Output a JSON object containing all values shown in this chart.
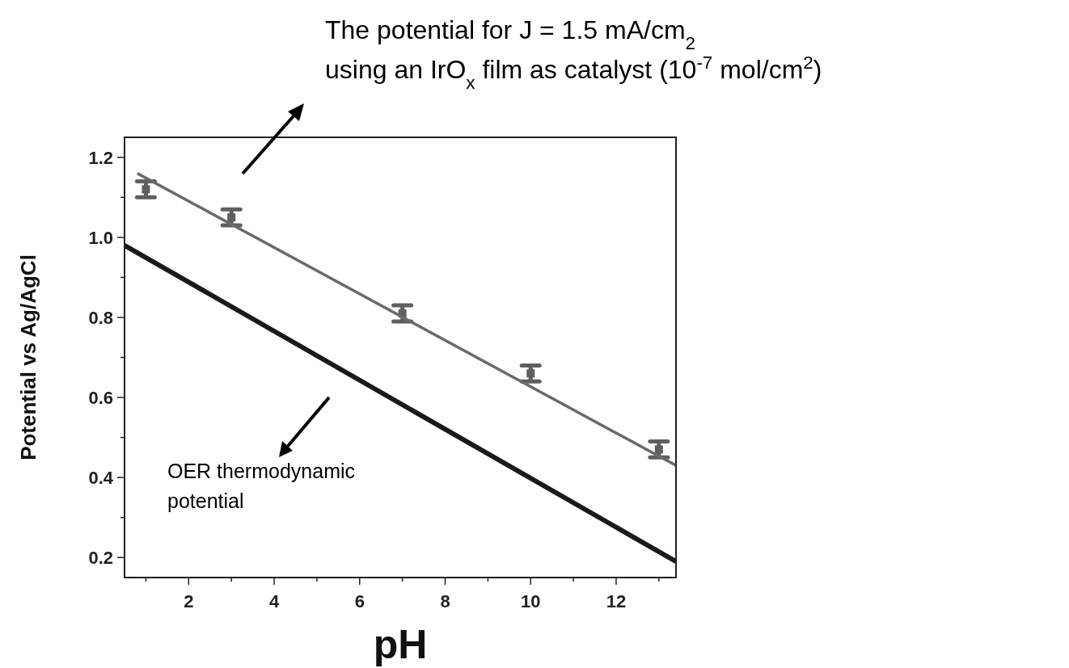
{
  "chart_data": {
    "type": "scatter",
    "xlabel": "pH",
    "ylabel": "Potential vs Ag/AgCl",
    "xlim": [
      0.5,
      13.4
    ],
    "ylim": [
      0.15,
      1.25
    ],
    "xticks": [
      {
        "value": 1,
        "label": null
      },
      2,
      {
        "value": 3,
        "label": null
      },
      4,
      {
        "value": 5,
        "label": null
      },
      6,
      {
        "value": 7,
        "label": null
      },
      8,
      {
        "value": 9,
        "label": null
      },
      10,
      {
        "value": 11,
        "label": null
      },
      12,
      {
        "value": 13,
        "label": null
      }
    ],
    "yticks": [
      0.2,
      {
        "value": 0.3,
        "label": null
      },
      0.4,
      {
        "value": 0.5,
        "label": null
      },
      0.6,
      {
        "value": 0.7,
        "label": null
      },
      0.8,
      {
        "value": 0.9,
        "label": null
      },
      {
        "value": 1,
        "label": "1.0"
      },
      {
        "value": 1.1,
        "label": null
      },
      1.2
    ],
    "grid": false,
    "series": [
      {
        "color": "#5f5f5f",
        "marker": "square",
        "x": [
          1,
          3,
          7,
          10,
          13
        ],
        "values": [
          1.12,
          1.05,
          0.81,
          0.66,
          0.47
        ],
        "errors": [
          0.02,
          0.02,
          0.02,
          0.02,
          0.02
        ]
      },
      {
        "type": "line",
        "color": "#6a6a6a",
        "x": [
          0.8,
          13.4
        ],
        "values": [
          1.16,
          0.43
        ]
      },
      {
        "type": "line",
        "color": "#1a1a1a",
        "x": [
          0.5,
          13.4
        ],
        "values": [
          0.98,
          0.19
        ]
      }
    ],
    "annotations": [
      "The potential for J = 1.5 mA/cm$_{2}$",
      "using an IrO$_{x}$ film as catalyst (10$^{-7}$ mol/cm$^{2}$)",
      "OER thermodynamic",
      "potential"
    ]
  }
}
